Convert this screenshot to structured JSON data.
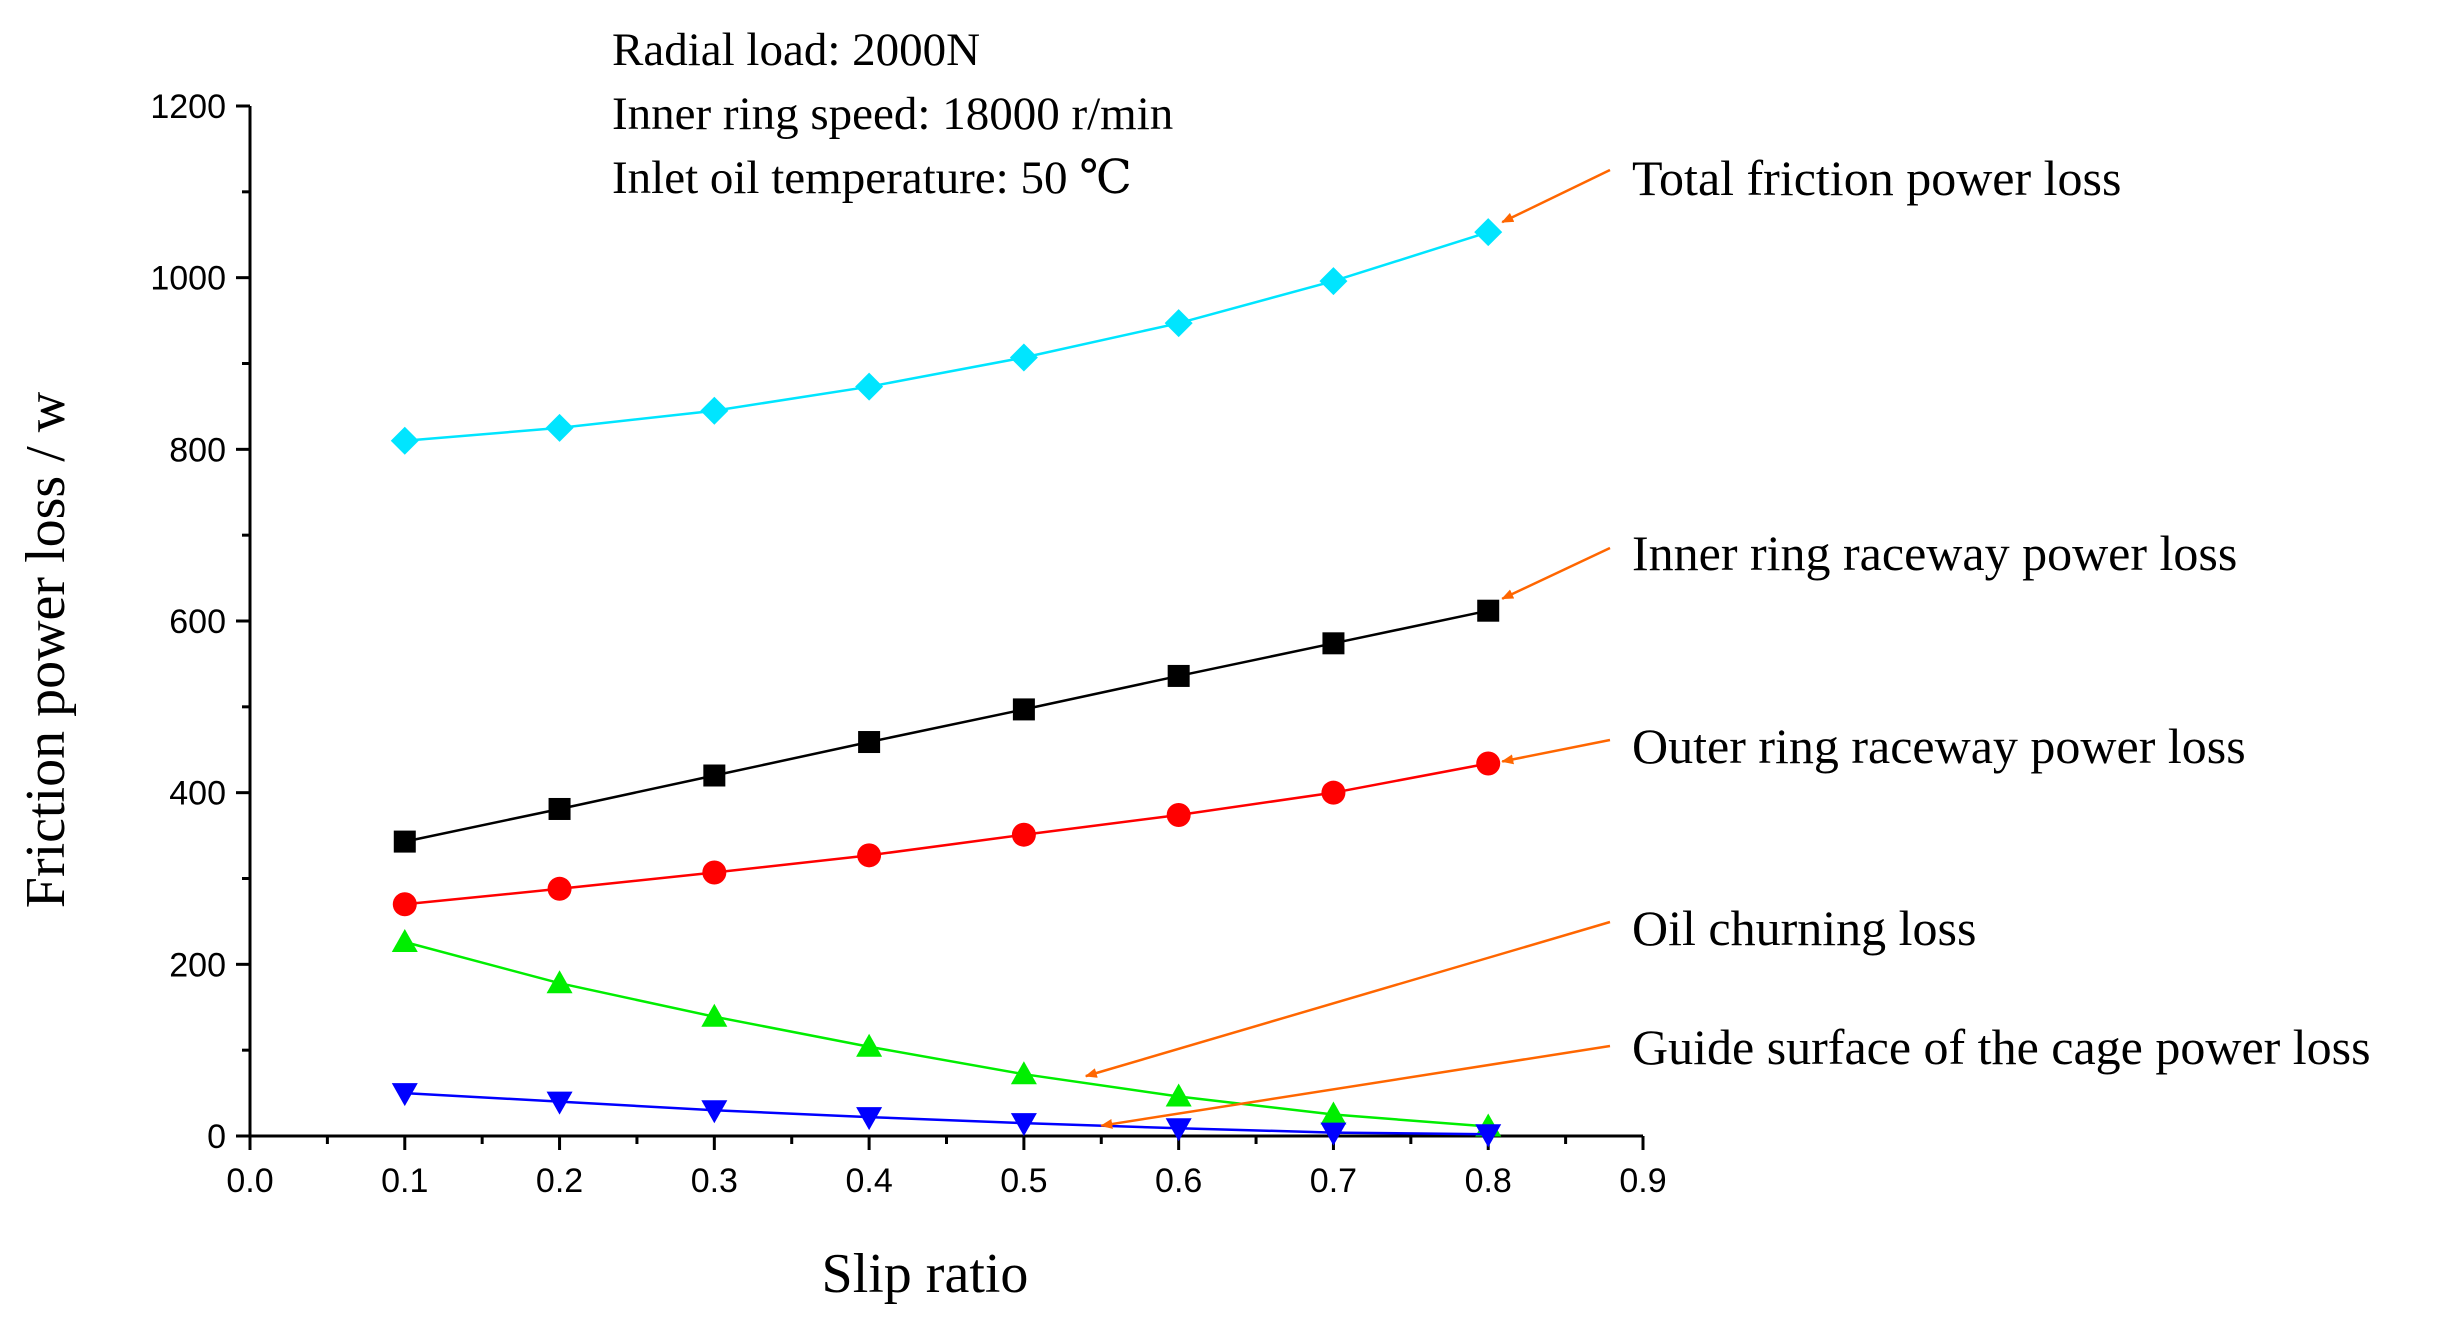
{
  "chart_data": {
    "type": "line",
    "title": "",
    "xlabel": "Slip ratio",
    "ylabel": "Friction power loss / w",
    "xlim": [
      0.0,
      0.9
    ],
    "ylim": [
      0,
      1200
    ],
    "xticks": [
      "0.0",
      "0.1",
      "0.2",
      "0.3",
      "0.4",
      "0.5",
      "0.6",
      "0.7",
      "0.8",
      "0.9"
    ],
    "yticks": [
      "0",
      "200",
      "400",
      "600",
      "800",
      "1000",
      "1200"
    ],
    "grid": false,
    "x": [
      0.1,
      0.2,
      0.3,
      0.4,
      0.5,
      0.6,
      0.7,
      0.8
    ],
    "series": [
      {
        "name": "Total friction power loss",
        "color": "#00e5ff",
        "marker": "diamond",
        "values": [
          810,
          825,
          845,
          873,
          907,
          947,
          996,
          1053
        ]
      },
      {
        "name": "Inner ring raceway power loss",
        "color": "#000000",
        "marker": "square",
        "values": [
          343,
          381,
          420,
          459,
          497,
          536,
          574,
          612
        ]
      },
      {
        "name": "Outer ring raceway power loss",
        "color": "#ff0000",
        "marker": "circle",
        "values": [
          270,
          288,
          307,
          327,
          351,
          374,
          400,
          434
        ]
      },
      {
        "name": "Oil churning loss",
        "color": "#00ee00",
        "marker": "triangle-up",
        "values": [
          226,
          178,
          139,
          104,
          72,
          46,
          25,
          11
        ]
      },
      {
        "name": "Guide surface of the cage power loss",
        "color": "#0000ff",
        "marker": "triangle-down",
        "values": [
          50,
          40,
          30,
          22,
          15,
          9,
          4,
          2
        ]
      }
    ],
    "conditions": [
      "Radial load: 2000N",
      "Inner ring speed: 18000 r/min",
      "Inlet oil temperature: 50 ℃"
    ],
    "arrow_color": "#ff6600"
  }
}
